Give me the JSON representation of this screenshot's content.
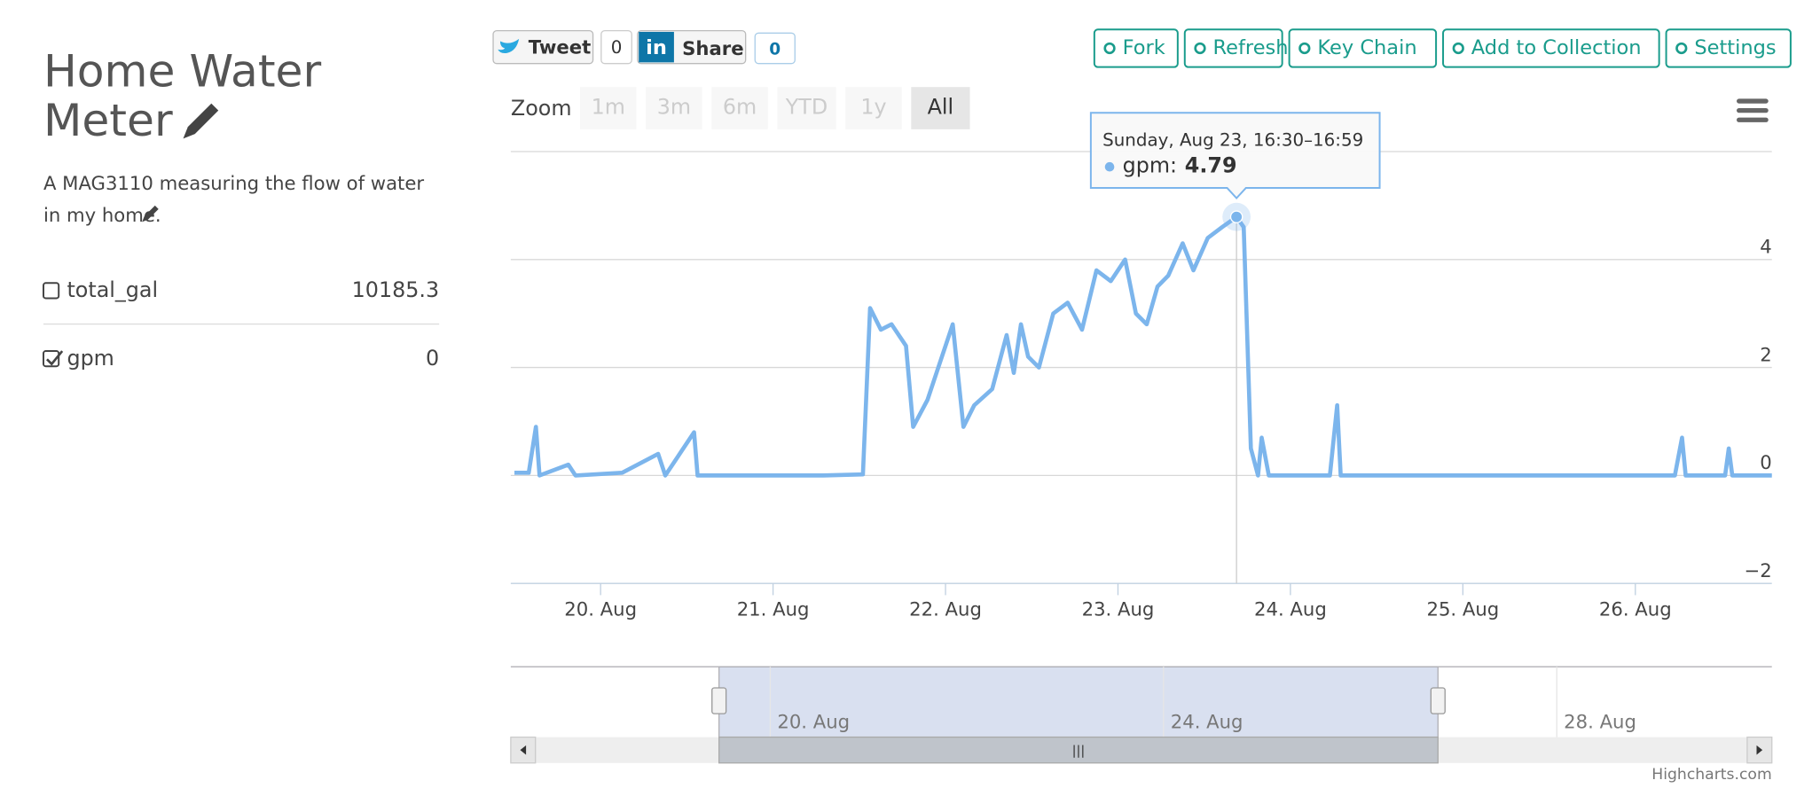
{
  "panel": {
    "title": "Home Water Meter",
    "description": "A MAG3110 measuring the flow of water in my home.",
    "fields": [
      {
        "name": "total_gal",
        "value": "10185.3",
        "checked": false
      },
      {
        "name": "gpm",
        "value": "0",
        "checked": true
      }
    ]
  },
  "toolbar": {
    "tweet": "Tweet",
    "tweet_count": "0",
    "share": "Share",
    "share_count": "0",
    "buttons": [
      "Fork",
      "Refresh",
      "Key Chain",
      "Add to Collection",
      "Settings"
    ],
    "zoom_label": "Zoom",
    "zoom_buttons": [
      {
        "label": "1m",
        "enabled": false
      },
      {
        "label": "3m",
        "enabled": false
      },
      {
        "label": "6m",
        "enabled": false
      },
      {
        "label": "YTD",
        "enabled": false
      },
      {
        "label": "1y",
        "enabled": false
      },
      {
        "label": "All",
        "enabled": true
      }
    ],
    "credits": "Highcharts.com"
  },
  "chart_data": {
    "type": "line",
    "grid": true,
    "xlim": [
      "Aug 19 11:30",
      "Aug 26 19:00"
    ],
    "xticks": [
      {
        "value": "Aug 20 00:00",
        "label": "20. Aug"
      },
      {
        "value": "Aug 21 00:00",
        "label": "21. Aug"
      },
      {
        "value": "Aug 22 00:00",
        "label": "22. Aug"
      },
      {
        "value": "Aug 23 00:00",
        "label": "23. Aug"
      },
      {
        "value": "Aug 24 00:00",
        "label": "24. Aug"
      },
      {
        "value": "Aug 25 00:00",
        "label": "25. Aug"
      },
      {
        "value": "Aug 26 00:00",
        "label": "26. Aug"
      }
    ],
    "ylim": [
      -2,
      6
    ],
    "yticks": [
      {
        "value": -2,
        "label": "−2"
      },
      0,
      2,
      4
    ],
    "series": [
      {
        "name": "gpm",
        "color": "#7cb5ec",
        "x": [
          "Aug 19 12:00",
          "Aug 19 14:00",
          "Aug 19 15:00",
          "Aug 19 15:30",
          "Aug 19 19:30",
          "Aug 19 20:30",
          "Aug 20 03:00",
          "Aug 20 08:00",
          "Aug 20 09:00",
          "Aug 20 13:00",
          "Aug 20 13:30",
          "Aug 21 07:00",
          "Aug 21 12:30",
          "Aug 21 13:30",
          "Aug 21 15:00",
          "Aug 21 16:30",
          "Aug 21 18:30",
          "Aug 21 19:30",
          "Aug 21 21:30",
          "Aug 21 23:00",
          "Aug 22 01:00",
          "Aug 22 02:30",
          "Aug 22 04:00",
          "Aug 22 06:30",
          "Aug 22 08:30",
          "Aug 22 09:30",
          "Aug 22 10:30",
          "Aug 22 11:30",
          "Aug 22 13:00",
          "Aug 22 15:00",
          "Aug 22 17:00",
          "Aug 22 19:00",
          "Aug 22 21:00",
          "Aug 22 23:00",
          "Aug 23 01:00",
          "Aug 23 02:30",
          "Aug 23 04:00",
          "Aug 23 05:30",
          "Aug 23 07:00",
          "Aug 23 09:00",
          "Aug 23 10:30",
          "Aug 23 12:30",
          "Aug 23 14:30",
          "Aug 23 16:30",
          "Aug 23 17:30",
          "Aug 23 18:30",
          "Aug 23 19:30",
          "Aug 23 20:00",
          "Aug 23 21:00",
          "Aug 24 05:30",
          "Aug 24 06:30",
          "Aug 24 07:00",
          "Aug 26 05:30",
          "Aug 26 06:30",
          "Aug 26 07:00",
          "Aug 26 12:30",
          "Aug 26 13:00",
          "Aug 26 13:30",
          "Aug 26 19:00"
        ],
        "values": [
          0.05,
          0.05,
          0.9,
          0,
          0.2,
          0,
          0.05,
          0.4,
          0,
          0.8,
          0,
          0,
          0.02,
          3.1,
          2.7,
          2.8,
          2.4,
          0.9,
          1.4,
          2.0,
          2.8,
          0.9,
          1.3,
          1.6,
          2.6,
          1.9,
          2.8,
          2.2,
          2.0,
          3.0,
          3.2,
          2.7,
          3.8,
          3.6,
          4.0,
          3.0,
          2.8,
          3.5,
          3.7,
          4.3,
          3.8,
          4.4,
          4.6,
          4.79,
          4.6,
          0.5,
          0,
          0.7,
          0,
          0,
          1.3,
          0,
          0,
          0.7,
          0,
          0,
          0.5,
          0,
          0
        ]
      }
    ],
    "tooltip": {
      "header": "Sunday, Aug 23, 16:30–16:59",
      "label": "gpm:",
      "point": 43
    },
    "navigator": {
      "xlim": [
        "Aug 17 08:40",
        "Aug 30 04:30"
      ],
      "xticks": [
        {
          "value": "Aug 20 00:00",
          "label": "20. Aug"
        },
        {
          "value": "Aug 24 00:00",
          "label": "24. Aug"
        },
        {
          "value": "Aug 28 00:00",
          "label": "28. Aug"
        }
      ]
    }
  }
}
